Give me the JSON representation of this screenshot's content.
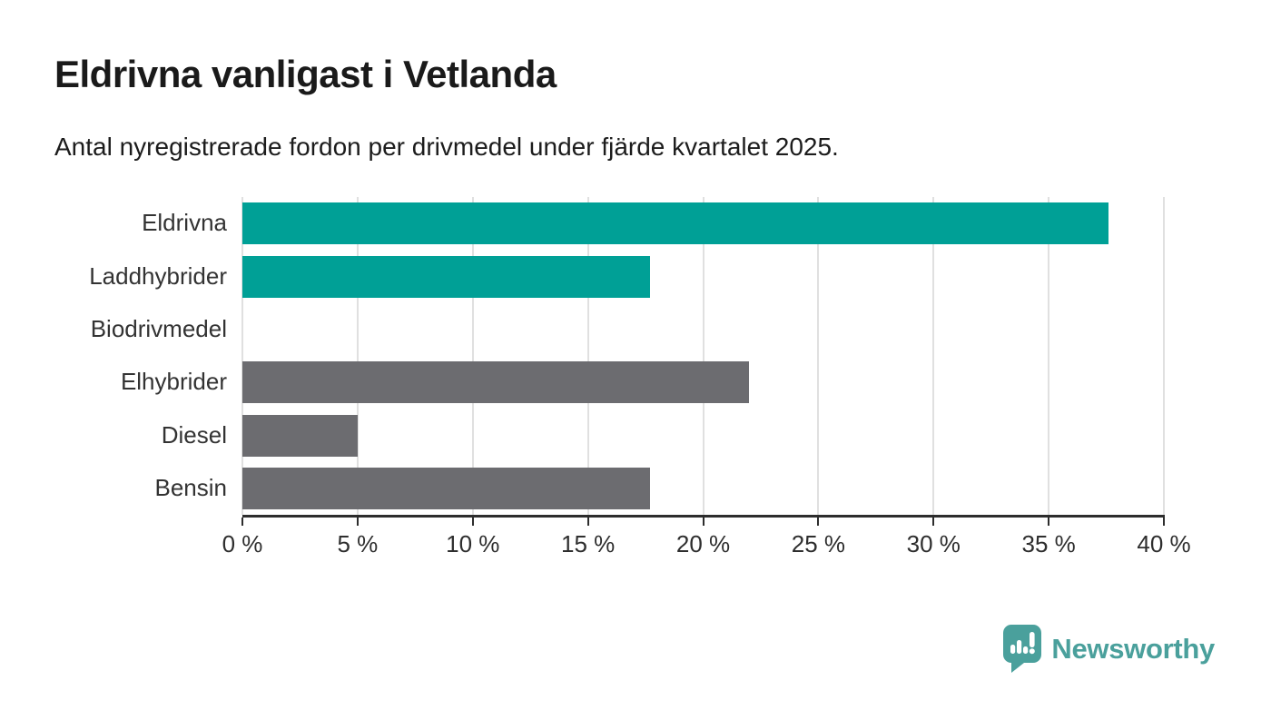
{
  "header": {
    "title": "Eldrivna vanligast i Vetlanda",
    "subtitle": "Antal nyregistrerade fordon per drivmedel under fjärde kvartalet 2025."
  },
  "chart_data": {
    "type": "bar",
    "orientation": "horizontal",
    "title": "Eldrivna vanligast i Vetlanda",
    "subtitle": "Antal nyregistrerade fordon per drivmedel under fjärde kvartalet 2025.",
    "categories": [
      "Eldrivna",
      "Laddhybrider",
      "Biodrivmedel",
      "Elhybrider",
      "Diesel",
      "Bensin"
    ],
    "values": [
      37.6,
      17.7,
      0,
      22,
      5,
      17.7
    ],
    "unit": "%",
    "bar_colors": [
      "#00a096",
      "#00a096",
      "#6c6c70",
      "#6c6c70",
      "#6c6c70",
      "#6c6c70"
    ],
    "highlight_color": "#00a096",
    "default_color": "#6c6c70",
    "x_axis": {
      "min": 0,
      "max": 40,
      "tick_step": 5,
      "tick_labels": [
        "0 %",
        "5 %",
        "10 %",
        "15 %",
        "20 %",
        "25 %",
        "30 %",
        "35 %",
        "40 %"
      ]
    },
    "grid": true,
    "gridline_color": "#e0e0e0",
    "axis_color": "#2d2d2d",
    "legend": "none"
  },
  "footer": {
    "brand": "Newsworthy",
    "brand_color": "#4aa09c"
  }
}
